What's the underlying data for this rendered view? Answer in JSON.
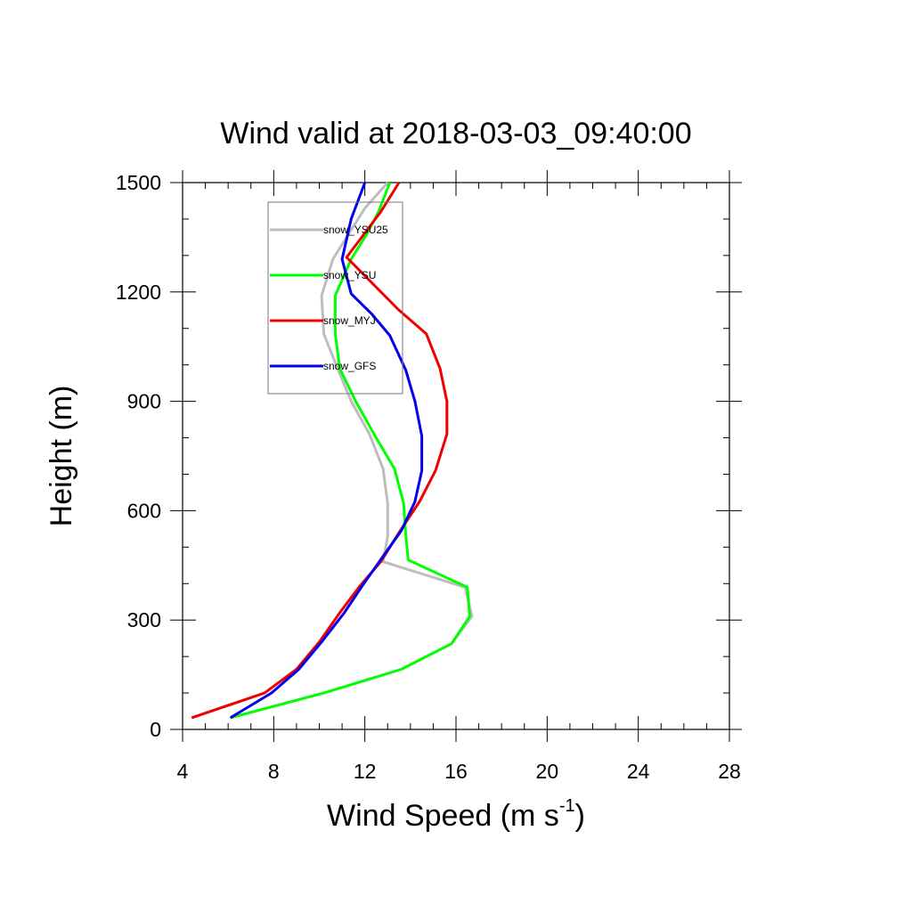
{
  "chart_data": {
    "type": "line",
    "title": "Wind valid at 2018-03-03_09:40:00",
    "xlabel": "Wind Speed (m s",
    "xlabel_superscript": "-1",
    "xlabel_suffix": ")",
    "ylabel": "Height (m)",
    "xlim": [
      4,
      28
    ],
    "ylim": [
      0,
      1500
    ],
    "x_ticks": [
      "4",
      "8",
      "12",
      "16",
      "20",
      "24",
      "28"
    ],
    "y_ticks": [
      "0",
      "300",
      "600",
      "900",
      "1200",
      "1500"
    ],
    "grid": false,
    "legend_position": "top-left-inside",
    "series": [
      {
        "name": "snow_YSU25",
        "color": "#bdbdbd",
        "x": [
          6.1,
          10.2,
          13.6,
          15.8,
          16.7,
          16.4,
          12.8,
          13.0,
          13.0,
          12.8,
          12.2,
          11.4,
          10.8,
          10.2,
          10.1,
          10.6,
          11.4,
          12.0,
          13.0
        ],
        "y": [
          32,
          100,
          165,
          235,
          310,
          390,
          460,
          530,
          620,
          715,
          810,
          900,
          990,
          1085,
          1190,
          1290,
          1370,
          1430,
          1500
        ]
      },
      {
        "name": "snow_YSU",
        "color": "#00ff00",
        "x": [
          6.1,
          10.2,
          13.6,
          15.8,
          16.6,
          16.5,
          13.9,
          13.8,
          13.7,
          13.3,
          12.4,
          11.6,
          10.9,
          10.7,
          10.7,
          11.4,
          12.1,
          12.6,
          13.1
        ],
        "y": [
          32,
          100,
          165,
          235,
          310,
          390,
          465,
          530,
          620,
          715,
          810,
          900,
          990,
          1085,
          1190,
          1290,
          1360,
          1420,
          1500
        ]
      },
      {
        "name": "snow_MYJ",
        "color": "#ee0000",
        "x": [
          4.4,
          7.6,
          9.0,
          10.0,
          10.9,
          11.8,
          12.7,
          13.5,
          14.4,
          15.1,
          15.6,
          15.6,
          15.3,
          14.7,
          13.5,
          11.2,
          11.8,
          12.7,
          13.5
        ],
        "y": [
          32,
          100,
          165,
          240,
          320,
          395,
          460,
          540,
          625,
          710,
          810,
          900,
          990,
          1085,
          1150,
          1295,
          1345,
          1420,
          1500
        ]
      },
      {
        "name": "snow_GFS",
        "color": "#0000ee",
        "x": [
          6.1,
          7.9,
          9.1,
          10.1,
          11.1,
          11.9,
          12.8,
          13.6,
          14.2,
          14.5,
          14.5,
          14.2,
          13.8,
          13.1,
          12.3,
          11.4,
          11.0,
          11.4,
          12.0
        ],
        "y": [
          32,
          100,
          165,
          240,
          320,
          395,
          475,
          545,
          625,
          710,
          805,
          900,
          985,
          1080,
          1140,
          1195,
          1290,
          1400,
          1500
        ]
      }
    ]
  }
}
